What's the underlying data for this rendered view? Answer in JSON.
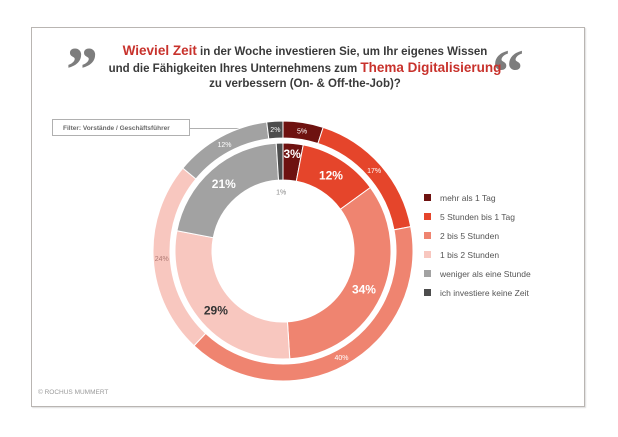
{
  "header": {
    "title_part1_hl": "Wieviel Zeit",
    "title_part1": " in der Woche investieren Sie, um Ihr eigenes Wissen",
    "title_part2": "und die Fähigkeiten Ihres Unternehmens zum ",
    "title_part2_hl": "Thema Digitalisierung",
    "title_part3": "zu verbessern (On- & Off-the-Job)?",
    "quote_open": "”",
    "quote_close": "“"
  },
  "filter_label": "Filter: Vorstände / Geschäftsführer",
  "copyright": "© ROCHUS MUMMERT",
  "chart_data": {
    "type": "pie",
    "subtype": "double-donut",
    "title": "Wieviel Zeit in der Woche investieren Sie, um Ihr eigenes Wissen und die Fähigkeiten Ihres Unternehmens zum Thema Digitalisierung zu verbessern (On- & Off-the-Job)?",
    "categories": [
      "mehr als 1 Tag",
      "5 Stunden bis 1 Tag",
      "2 bis 5 Stunden",
      "1 bis 2 Stunden",
      "weniger als eine Stunde",
      "ich investiere keine Zeit"
    ],
    "colors": [
      "#6e1210",
      "#e5452b",
      "#ef8470",
      "#f8c7bf",
      "#a2a2a2",
      "#4d4d4d"
    ],
    "label_colors": {
      "outer": [
        "#ffffff",
        "#ffffff",
        "#ffffff",
        "#b07a74",
        "#ffffff",
        "#ffffff"
      ],
      "inner": [
        "#ffffff",
        "#ffffff",
        "#ffffff",
        "#333333",
        "#ffffff",
        "#888888"
      ]
    },
    "series": [
      {
        "name": "outer",
        "values": [
          5,
          17,
          40,
          24,
          12,
          2
        ],
        "labels": [
          "5%",
          "17%",
          "40%",
          "24%",
          "12%",
          "2%"
        ]
      },
      {
        "name": "inner",
        "values": [
          3,
          12,
          34,
          29,
          21,
          1
        ],
        "labels": [
          "3%",
          "12%",
          "34%",
          "29%",
          "21%",
          "1%"
        ]
      }
    ],
    "legend_position": "right"
  }
}
